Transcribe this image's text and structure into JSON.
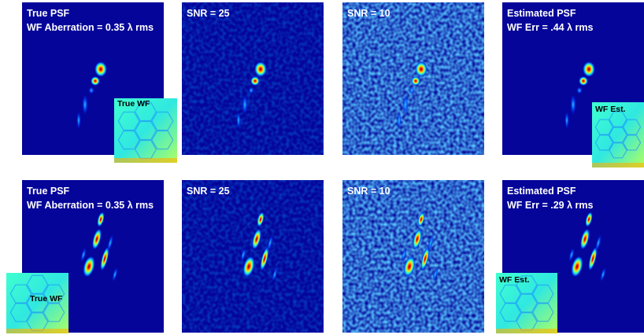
{
  "rows": [
    [
      {
        "lines": [
          "True PSF",
          "WF Aberration = 0.35 λ rms"
        ],
        "inset": "True WF"
      },
      {
        "lines": [
          "SNR = 25"
        ]
      },
      {
        "lines": [
          "SNR = 10"
        ]
      },
      {
        "lines": [
          "Estimated PSF",
          "WF Err = .44 λ rms"
        ],
        "inset": "WF Est."
      }
    ],
    [
      {
        "lines": [
          "True PSF",
          "WF Aberration = 0.35 λ rms"
        ],
        "inset": "True WF"
      },
      {
        "lines": [
          "SNR = 25"
        ]
      },
      {
        "lines": [
          "SNR = 10"
        ]
      },
      {
        "lines": [
          "Estimated PSF",
          "WF Err = .29 λ rms"
        ],
        "inset": "WF Est."
      }
    ]
  ]
}
